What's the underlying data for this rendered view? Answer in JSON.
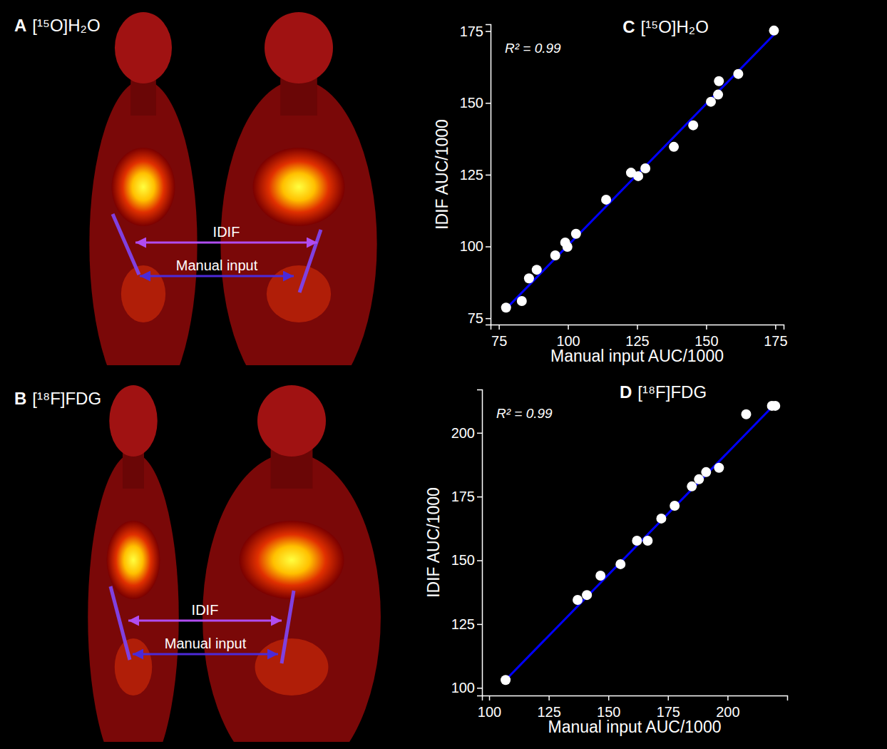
{
  "chart_data": [
    {
      "panel": "C",
      "type": "scatter",
      "title": "[¹⁵O]H₂O",
      "x_label": "Manual input AUC/1000",
      "y_label": "IDIF AUC/1000",
      "annotation": "R² = 0.99",
      "xlim": [
        72,
        178
      ],
      "ylim": [
        72.8,
        177.4
      ],
      "xticks": [
        75,
        100,
        125,
        150,
        175
      ],
      "yticks": [
        75,
        100,
        125,
        150,
        175
      ],
      "grid": false,
      "series": [
        {
          "type": "scatter",
          "color": "#ffffff",
          "marker": "circle",
          "x": [
            77.6,
            83.3,
            85.9,
            88.7,
            95.4,
            99.0,
            99.8,
            102.9,
            113.8,
            122.8,
            125.4,
            128.0,
            138.3,
            145.3,
            151.7,
            154.3,
            154.6,
            161.6,
            174.5
          ],
          "values": [
            78.7,
            81.0,
            88.9,
            91.9,
            96.9,
            101.4,
            99.9,
            104.4,
            116.3,
            125.7,
            124.5,
            127.2,
            134.7,
            142.2,
            150.4,
            152.9,
            157.6,
            160.1,
            175.2
          ]
        },
        {
          "type": "line",
          "color": "#0000ff",
          "line_style": "solid",
          "x": [
            77.1,
            174.5
          ],
          "values": [
            77.8,
            173.8
          ]
        }
      ]
    },
    {
      "panel": "D",
      "type": "scatter",
      "title": "[¹⁸F]FDG",
      "x_label": "Manual input AUC/1000",
      "y_label": "IDIF AUC/1000",
      "annotation": "R² = 0.99",
      "xlim": [
        97,
        225
      ],
      "ylim": [
        97,
        217
      ],
      "xticks": [
        100,
        125,
        150,
        175,
        200
      ],
      "yticks": [
        100,
        125,
        150,
        175,
        200
      ],
      "grid": false,
      "series": [
        {
          "type": "scatter",
          "color": "#ffffff",
          "marker": "circle",
          "x": [
            106.9,
            137.1,
            141.0,
            146.7,
            155.1,
            162.0,
            166.5,
            172.2,
            177.8,
            185.0,
            188.0,
            191.0,
            196.4,
            207.8,
            218.6,
            220.0
          ],
          "values": [
            103.1,
            134.5,
            136.4,
            144.0,
            148.5,
            157.7,
            157.7,
            166.4,
            171.4,
            179.0,
            181.8,
            184.6,
            186.3,
            207.3,
            210.6,
            210.6
          ]
        },
        {
          "type": "line",
          "color": "#0000ff",
          "line_style": "solid",
          "x": [
            106.9,
            219.5
          ],
          "values": [
            103.1,
            210.9
          ]
        }
      ]
    }
  ],
  "image_panels": [
    {
      "panel": "A",
      "title": "[¹⁵O]H₂O",
      "labels": [
        "IDIF",
        "Manual input"
      ]
    },
    {
      "panel": "B",
      "title": "[¹⁸F]FDG",
      "labels": [
        "IDIF",
        "Manual input"
      ]
    }
  ]
}
